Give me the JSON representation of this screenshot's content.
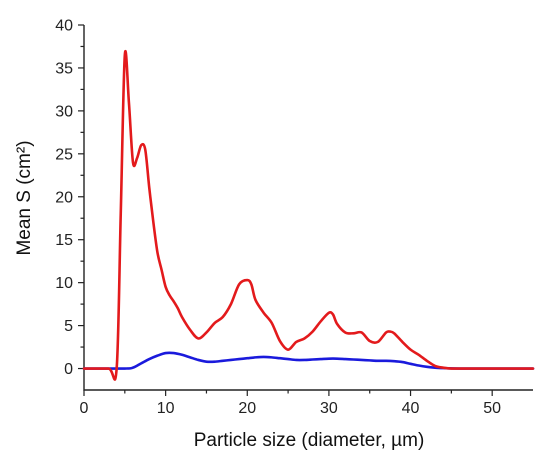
{
  "chart_data": {
    "type": "line",
    "title": "",
    "xlabel": "Particle size (diameter, µm)",
    "ylabel": "Mean S (cm²)",
    "xlim": [
      0,
      55
    ],
    "ylim": [
      -2.5,
      40
    ],
    "xticks": [
      0,
      10,
      20,
      30,
      40,
      50
    ],
    "yticks": [
      0,
      5,
      10,
      15,
      20,
      25,
      30,
      35,
      40
    ],
    "xtick_labels": [
      "0",
      "10",
      "20",
      "30",
      "40",
      "50"
    ],
    "ytick_labels": [
      "0",
      "5",
      "10",
      "15",
      "20",
      "25",
      "30",
      "35",
      "40"
    ],
    "grid": false,
    "legend": "none",
    "series": [
      {
        "color": "#e31a1c",
        "x": [
          0,
          3,
          4,
          4.5,
          5,
          5.5,
          6,
          6.5,
          7,
          7.5,
          8,
          8.5,
          9,
          9.5,
          10,
          10.5,
          11,
          11.5,
          12,
          13,
          14,
          15,
          16,
          17,
          18,
          19,
          20,
          20.5,
          21,
          22,
          23,
          24,
          25,
          26,
          27,
          28,
          29,
          30,
          30.5,
          31,
          32,
          33,
          34,
          35,
          36,
          37,
          37.5,
          38,
          39,
          40,
          41,
          42,
          43,
          44,
          45,
          47,
          50,
          55
        ],
        "y": [
          0,
          0,
          0,
          18,
          36.5,
          31,
          24,
          24.5,
          26,
          25.5,
          21,
          17,
          13.5,
          11.5,
          9.5,
          8.5,
          7.8,
          7,
          6,
          4.5,
          3.5,
          4.2,
          5.3,
          6,
          7.5,
          9.8,
          10.3,
          9.8,
          8,
          6.5,
          5.3,
          3.2,
          2.2,
          3.1,
          3.5,
          4.3,
          5.5,
          6.5,
          6.3,
          5.2,
          4.2,
          4.1,
          4.2,
          3.2,
          3.1,
          4.2,
          4.3,
          4.1,
          3.1,
          2.2,
          1.6,
          0.9,
          0.3,
          0.1,
          0,
          0,
          0,
          0
        ]
      },
      {
        "color": "#1a1adc",
        "x": [
          0,
          5,
          6,
          7,
          8,
          9,
          10,
          11,
          12,
          13,
          14,
          15,
          16,
          17,
          18,
          19,
          20,
          21,
          22,
          23,
          24,
          25,
          26,
          27,
          28,
          29,
          30,
          31,
          32,
          33,
          34,
          35,
          36,
          37,
          38,
          39,
          40,
          41,
          42,
          43,
          44,
          46,
          50,
          55
        ],
        "y": [
          0,
          0,
          0.1,
          0.6,
          1.1,
          1.5,
          1.8,
          1.8,
          1.6,
          1.3,
          1.0,
          0.8,
          0.8,
          0.9,
          1.0,
          1.1,
          1.2,
          1.3,
          1.35,
          1.3,
          1.2,
          1.1,
          1.0,
          1.0,
          1.05,
          1.1,
          1.15,
          1.15,
          1.1,
          1.05,
          1.0,
          0.95,
          0.9,
          0.9,
          0.85,
          0.75,
          0.55,
          0.35,
          0.2,
          0.1,
          0.05,
          0,
          0,
          0
        ]
      }
    ]
  }
}
